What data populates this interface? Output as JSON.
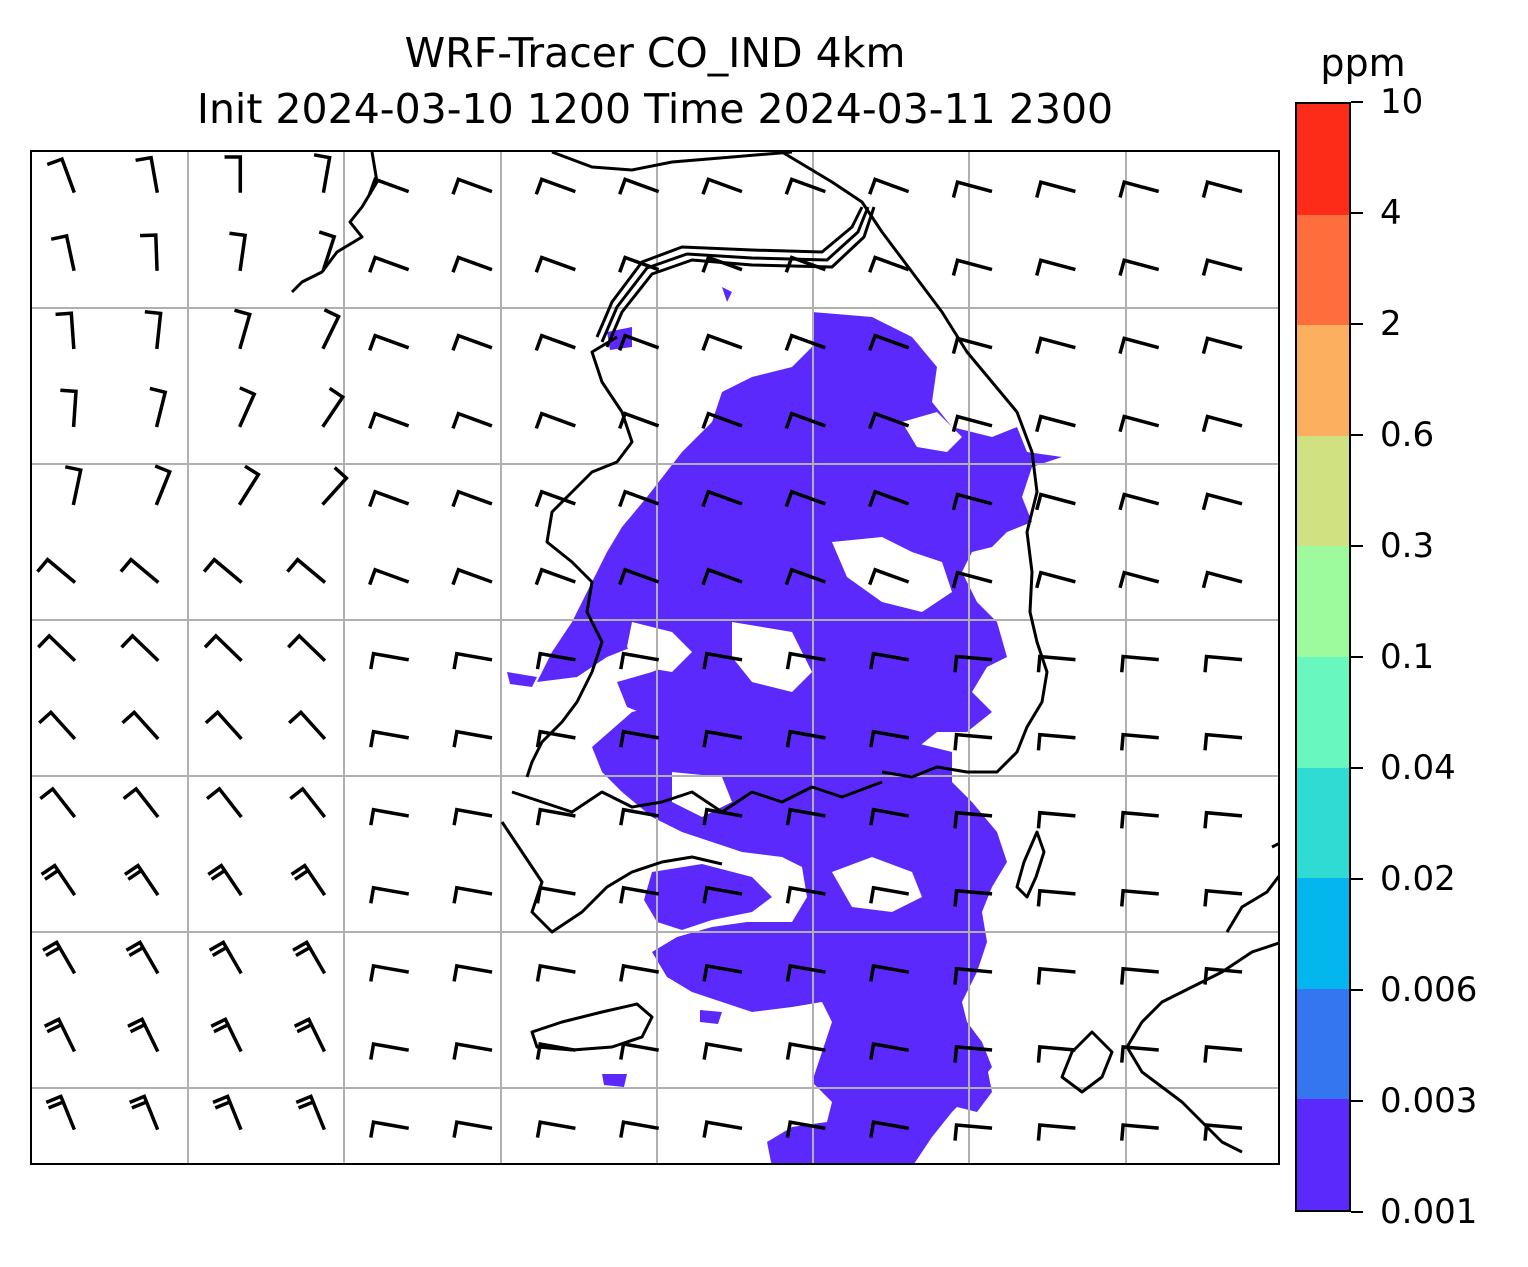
{
  "title": {
    "line1": "WRF-Tracer CO_IND 4km",
    "line2": "Init 2024-03-10 1200 Time 2024-03-11 2300"
  },
  "colorbar": {
    "unit": "ppm",
    "levels": [
      "0.001",
      "0.003",
      "0.006",
      "0.02",
      "0.04",
      "0.1",
      "0.3",
      "0.6",
      "2",
      "4",
      "10"
    ],
    "colors": [
      "#5b29fb",
      "#3476ef",
      "#04b6ee",
      "#2fdbd3",
      "#68f8bf",
      "#9dfa9d",
      "#d0e181",
      "#fcaf5e",
      "#fe6e3d",
      "#fc2c18"
    ]
  },
  "map": {
    "field_color": "#5b29fb",
    "grid_color": "#b0b0b0",
    "coastline_color": "#000000",
    "barb_color": "#000000",
    "gridline_count_vertical": 7,
    "gridline_count_horizontal": 6
  },
  "chart_data": {
    "type": "heatmap",
    "title": "WRF-Tracer CO_IND 4km",
    "subtitle": "Init 2024-03-10 1200 Time 2024-03-11 2300",
    "colorbar_label": "ppm",
    "levels": [
      0.001,
      0.003,
      0.006,
      0.02,
      0.04,
      0.1,
      0.3,
      0.6,
      2,
      4,
      10
    ],
    "visible_range_ppm": [
      0.001,
      0.003
    ],
    "overlay": "wind barbs"
  }
}
